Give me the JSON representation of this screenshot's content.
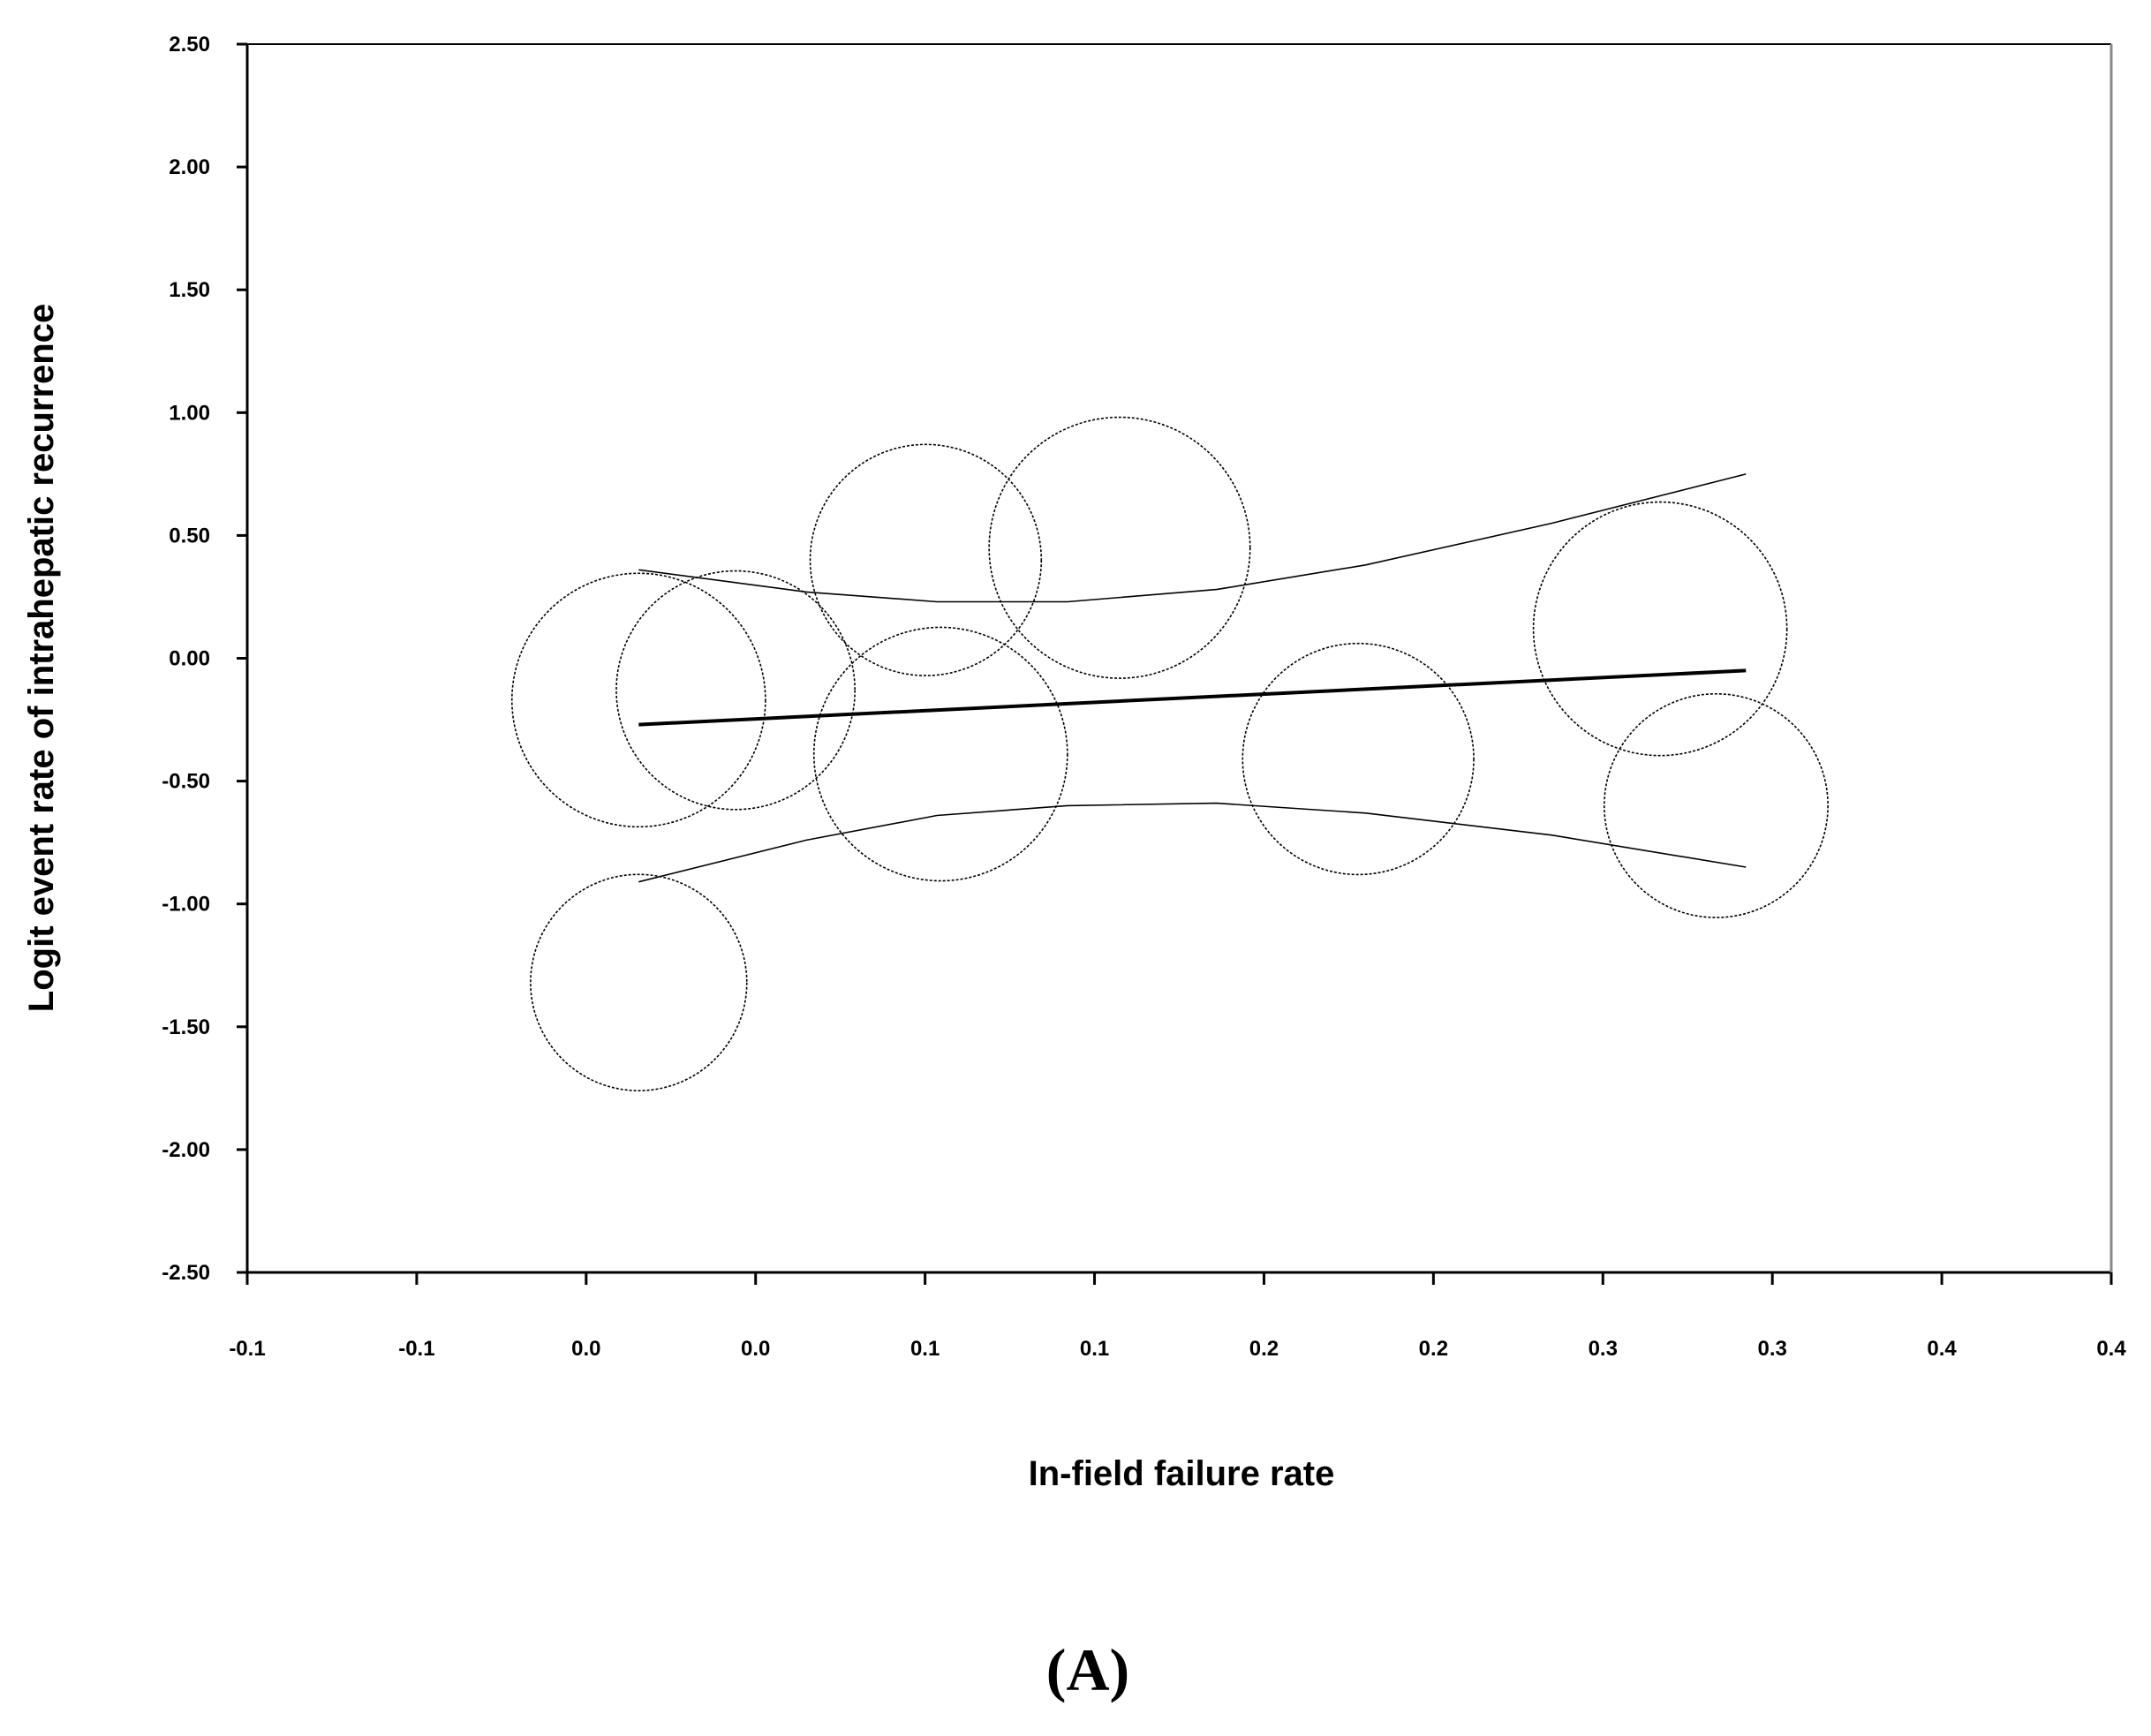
{
  "chart_data": {
    "type": "scatter",
    "title": "",
    "panel_label": "(A)",
    "xlabel": "In-field failure rate",
    "ylabel": "Logit event rate of intrahepatic recurrence",
    "xlim": [
      -0.1,
      0.4
    ],
    "ylim": [
      -2.5,
      2.5
    ],
    "x_tick_labels": [
      "-0.1",
      "-0.1",
      "0.0",
      "0.0",
      "0.1",
      "0.1",
      "0.2",
      "0.2",
      "0.3",
      "0.3",
      "0.4",
      "0.4"
    ],
    "y_tick_labels": [
      "2.50",
      "2.00",
      "1.50",
      "1.00",
      "0.50",
      "0.00",
      "-0.50",
      "-1.00",
      "-1.50",
      "-2.00",
      "-2.50"
    ],
    "grid": false,
    "legend": "none",
    "points": [
      {
        "x": 0.005,
        "y": -0.17,
        "r": 0.034
      },
      {
        "x": 0.031,
        "y": -0.13,
        "r": 0.032
      },
      {
        "x": 0.005,
        "y": -1.32,
        "r": 0.029
      },
      {
        "x": 0.082,
        "y": 0.4,
        "r": 0.031
      },
      {
        "x": 0.086,
        "y": -0.39,
        "r": 0.034
      },
      {
        "x": 0.134,
        "y": 0.45,
        "r": 0.035
      },
      {
        "x": 0.198,
        "y": -0.41,
        "r": 0.031
      },
      {
        "x": 0.279,
        "y": 0.12,
        "r": 0.034
      },
      {
        "x": 0.294,
        "y": -0.6,
        "r": 0.03
      }
    ],
    "regression": {
      "x": [
        0.005,
        0.302
      ],
      "y": [
        -0.27,
        -0.05
      ]
    },
    "upper_ci": {
      "x": [
        0.005,
        0.05,
        0.085,
        0.12,
        0.16,
        0.2,
        0.25,
        0.302
      ],
      "y": [
        0.36,
        0.27,
        0.23,
        0.23,
        0.28,
        0.38,
        0.55,
        0.75
      ]
    },
    "lower_ci": {
      "x": [
        0.005,
        0.05,
        0.085,
        0.12,
        0.16,
        0.2,
        0.25,
        0.302
      ],
      "y": [
        -0.91,
        -0.74,
        -0.64,
        -0.6,
        -0.59,
        -0.63,
        -0.72,
        -0.85
      ]
    },
    "colors": {
      "axis": "#000000",
      "right_axis": "#888888",
      "marker": "#000000",
      "line": "#000000"
    }
  }
}
